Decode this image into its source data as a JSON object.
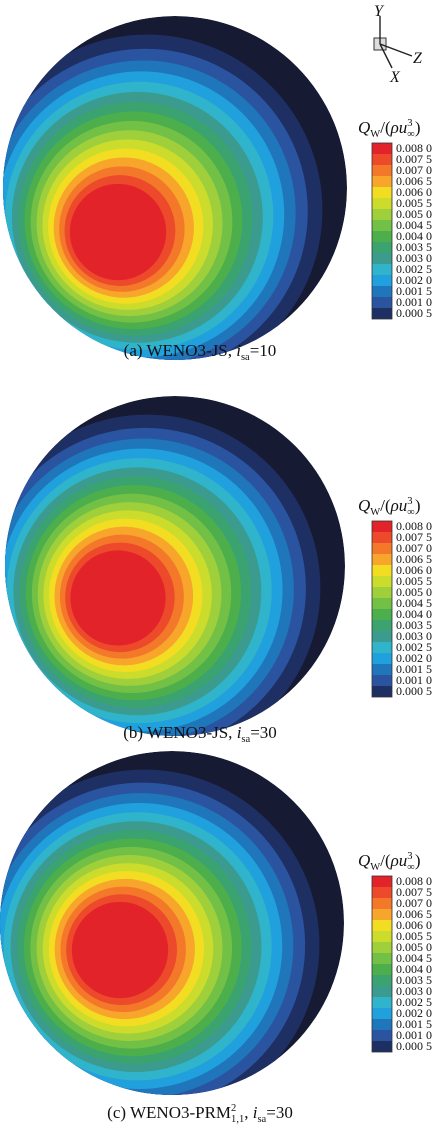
{
  "triad": {
    "y": "Y",
    "z": "Z",
    "x": "X"
  },
  "legend_title": [
    {
      "text": "Q",
      "style": "italic"
    },
    {
      "text": "W",
      "style": "sub"
    },
    {
      "text": "/("
    },
    {
      "text": "ρu",
      "style": "italic"
    },
    {
      "text": "3",
      "style": "sup"
    },
    {
      "text": "∞",
      "style": "sub-under"
    },
    {
      "text": ")"
    }
  ],
  "colorbar": {
    "labels": [
      "0.008 0",
      "0.007 5",
      "0.007 0",
      "0.006 5",
      "0.006 0",
      "0.005 5",
      "0.005 0",
      "0.004 5",
      "0.004 0",
      "0.003 5",
      "0.003 0",
      "0.002 5",
      "0.002 0",
      "0.001 5",
      "0.001 0",
      "0.000 5"
    ],
    "colors": [
      "#e3232a",
      "#ec4a2b",
      "#f4782a",
      "#f8a52c",
      "#f2dd22",
      "#cbdc2c",
      "#9fcf3b",
      "#72c045",
      "#4caf4b",
      "#3ba36f",
      "#3a9b8e",
      "#2fb4cb",
      "#20a0dc",
      "#1f76bb",
      "#2a54a0",
      "#1e2f63"
    ]
  },
  "panels": [
    {
      "caption": [
        {
          "text": "(a) WENO3-JS, "
        },
        {
          "text": "i",
          "style": "italic"
        },
        {
          "text": "sa",
          "style": "sub"
        },
        {
          "text": "=10"
        }
      ]
    },
    {
      "caption": [
        {
          "text": "(b) WENO3-JS, "
        },
        {
          "text": "i",
          "style": "italic"
        },
        {
          "text": "sa",
          "style": "sub"
        },
        {
          "text": "=30"
        }
      ]
    },
    {
      "caption": [
        {
          "text": "(c) WENO3-PRM"
        },
        {
          "text": "2",
          "style": "sup"
        },
        {
          "text": "1,1",
          "style": "sub-under"
        },
        {
          "text": ", "
        },
        {
          "text": "i",
          "style": "italic"
        },
        {
          "text": "sa",
          "style": "sub"
        },
        {
          "text": "=30"
        }
      ]
    }
  ]
}
